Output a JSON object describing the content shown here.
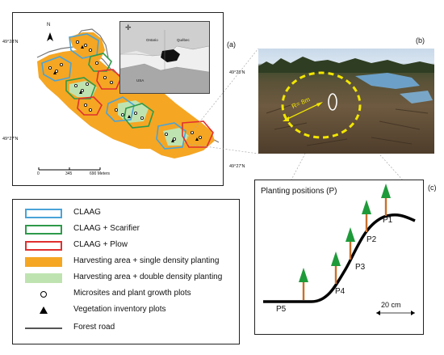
{
  "panels": {
    "a": "(a)",
    "b": "(b)",
    "c": "(c)"
  },
  "map": {
    "north": "N",
    "coords": {
      "lat_top_left": "49°28'N",
      "lat_top_right": "49°28'N",
      "lat_mid_left": "49°27'N",
      "lat_bot_right": "49°27'N"
    },
    "scale": {
      "zero": "0",
      "mid": "345",
      "end": "690 Meters"
    },
    "inset": {
      "ontario": "Ontario",
      "quebec": "Québec",
      "usa": "USA"
    }
  },
  "photo": {
    "radius_label": "R= 8m"
  },
  "planting": {
    "title": "Planting positions (P)",
    "positions": [
      "P1",
      "P2",
      "P3",
      "P4",
      "P5"
    ],
    "scale": "20 cm"
  },
  "legend": {
    "items": [
      {
        "label": "CLAAG",
        "type": "outline",
        "color": "#4aa3d8"
      },
      {
        "label": "CLAAG + Scarifier",
        "type": "outline",
        "color": "#2e9a4a"
      },
      {
        "label": "CLAAG + Plow",
        "type": "outline",
        "color": "#e03030"
      },
      {
        "label": "Harvesting area + single density planting",
        "type": "fill",
        "color": "#f5a623"
      },
      {
        "label": "Harvesting area + double density planting",
        "type": "fill",
        "color": "#bfe3b0"
      },
      {
        "label": "Microsites and plant growth plots",
        "type": "circle",
        "color": "#000000"
      },
      {
        "label": "Vegetation inventory plots",
        "type": "triangle",
        "color": "#000000"
      },
      {
        "label": "Forest road",
        "type": "line",
        "color": "#555555"
      }
    ]
  },
  "colors": {
    "orange": "#f5a623",
    "light_green": "#bfe3b0",
    "blue": "#4aa3d8",
    "green": "#2e9a4a",
    "red": "#e03030",
    "road": "#666666",
    "dashed_circle": "#f2e600",
    "stem": "#c8702a",
    "crown": "#1f9a3a"
  }
}
